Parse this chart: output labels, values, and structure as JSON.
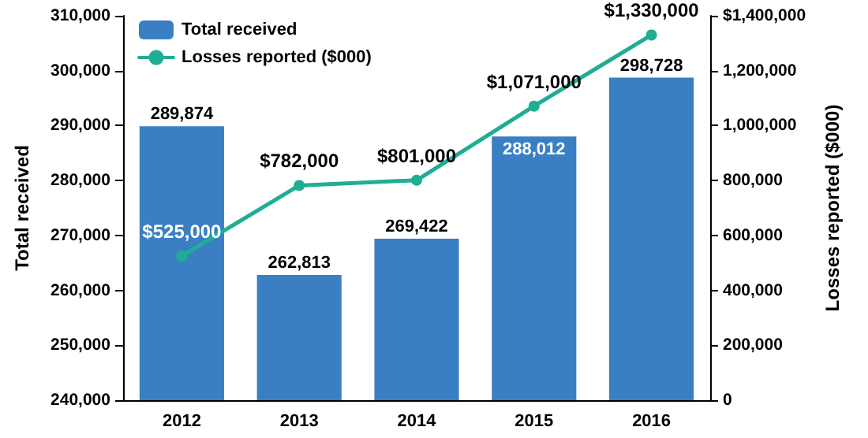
{
  "chart_data": {
    "type": "bar",
    "categories": [
      "2012",
      "2013",
      "2014",
      "2015",
      "2016"
    ],
    "series": [
      {
        "name": "Total received",
        "color": "#3a7fc4",
        "values": [
          289874,
          262813,
          269422,
          288012,
          298728
        ],
        "value_labels": [
          "289,874",
          "262,813",
          "269,422",
          "288,012",
          "298,728"
        ]
      },
      {
        "name": "Losses reported ($000)",
        "type": "line",
        "axis": "y2",
        "color": "#1fae94",
        "values": [
          525000,
          782000,
          801000,
          1071000,
          1330000
        ],
        "value_labels": [
          "$525,000",
          "$782,000",
          "$801,000",
          "$1,071,000",
          "$1,330,000"
        ]
      }
    ],
    "ylabel": "Total received",
    "y2label": "Losses reported ($000)",
    "ylim": [
      240000,
      310000
    ],
    "yticks": [
      {
        "value": 240000,
        "label": "240,000"
      },
      {
        "value": 250000,
        "label": "250,000"
      },
      {
        "value": 260000,
        "label": "260,000"
      },
      {
        "value": 270000,
        "label": "270,000"
      },
      {
        "value": 280000,
        "label": "280,000"
      },
      {
        "value": 290000,
        "label": "290,000"
      },
      {
        "value": 300000,
        "label": "300,000"
      },
      {
        "value": 310000,
        "label": "310,000"
      }
    ],
    "y2lim": [
      0,
      1400000
    ],
    "y2ticks": [
      0,
      {
        "value": 200000,
        "label": "200,000"
      },
      {
        "value": 400000,
        "label": "400,000"
      },
      {
        "value": 600000,
        "label": "600,000"
      },
      {
        "value": 800000,
        "label": "800,000"
      },
      {
        "value": 1000000,
        "label": "1,000,000"
      },
      {
        "value": 1200000,
        "label": "1,200,000"
      },
      {
        "value": 1400000,
        "label": "$1,400,000"
      }
    ],
    "grid": false,
    "legend": "top left",
    "marker": "circle",
    "line_style": "solid"
  }
}
